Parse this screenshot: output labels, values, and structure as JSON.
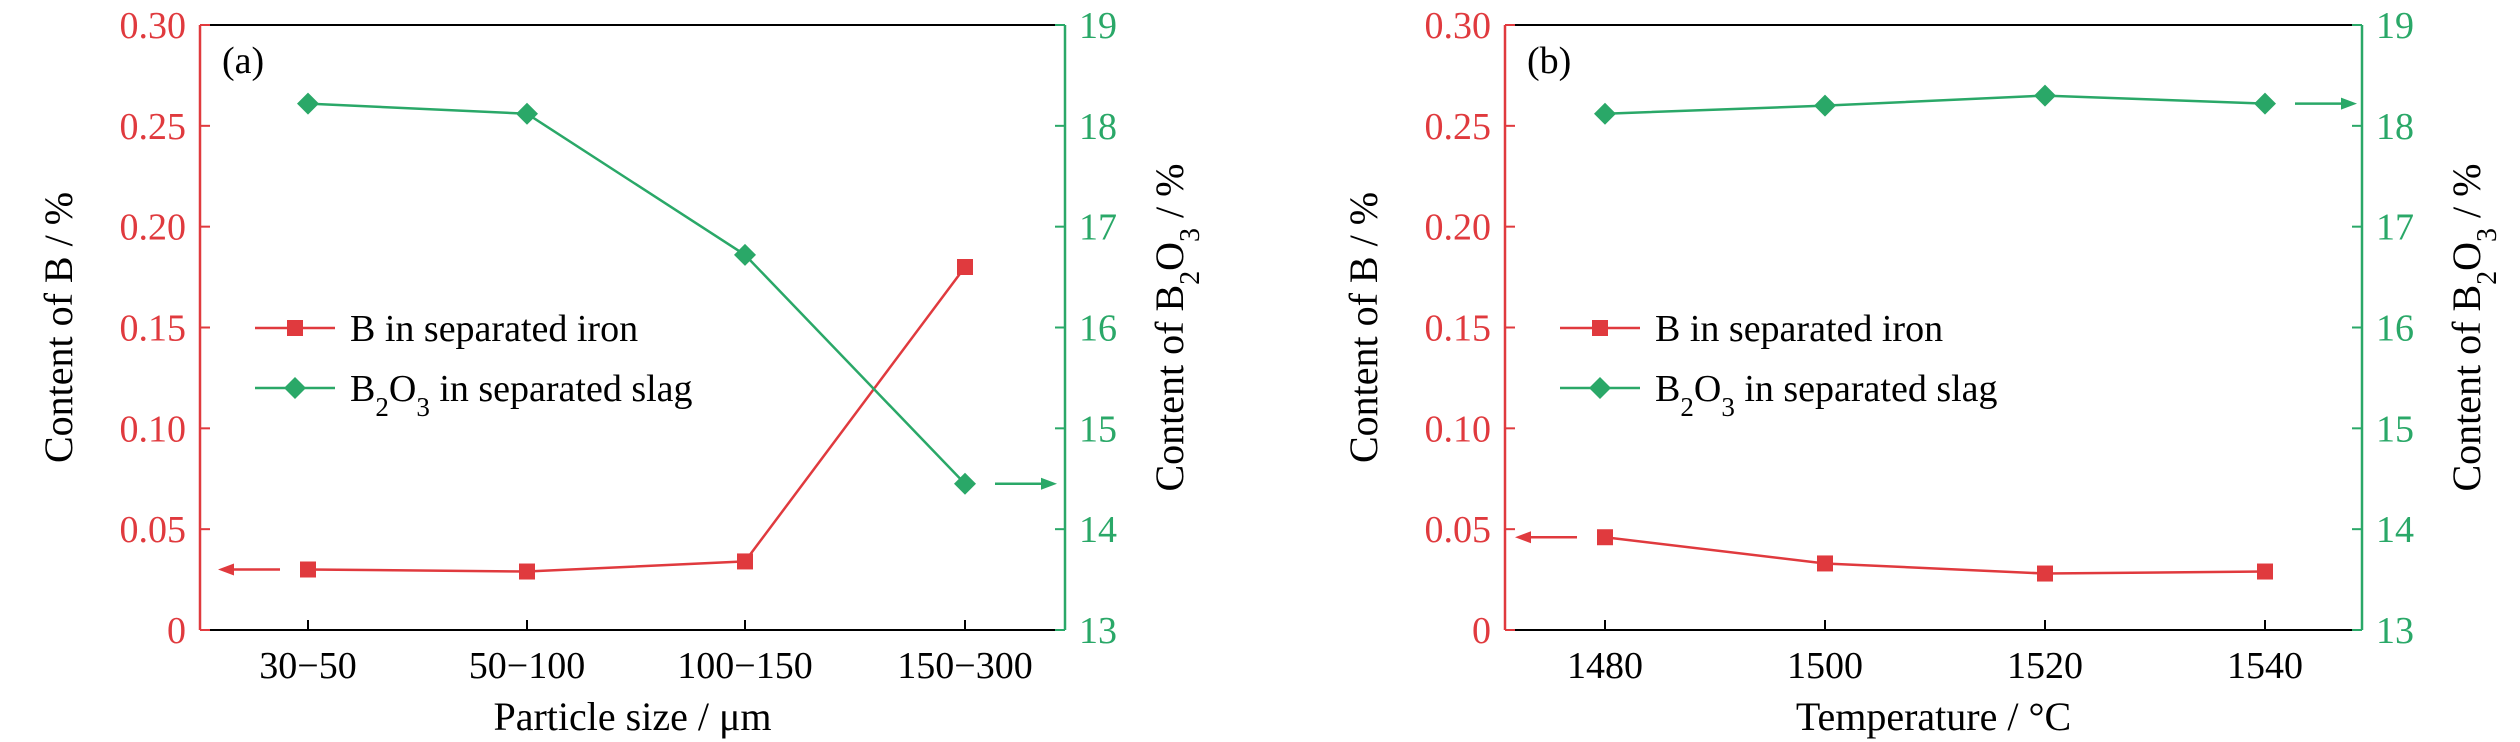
{
  "colors": {
    "left_axis": "#e03a3e",
    "right_axis": "#2aa868",
    "frame": "#000000",
    "series_b": "#e03a3e",
    "series_b2o3": "#2aa868"
  },
  "chart_data": [
    {
      "type": "line",
      "panel_label": "(a)",
      "xlabel": "Particle size / μm",
      "categories": [
        "30−50",
        "50−100",
        "100−150",
        "150−300"
      ],
      "ylabel_left": "Content of B / %",
      "ylabel_right": "Content of B₂O₃ / %",
      "ylim_left": [
        0,
        0.3
      ],
      "ylim_right": [
        13,
        19
      ],
      "yticks_left": [
        "0",
        "0.05",
        "0.10",
        "0.15",
        "0.20",
        "0.25",
        "0.30"
      ],
      "yticks_right": [
        "13",
        "14",
        "15",
        "16",
        "17",
        "18",
        "19"
      ],
      "grid": false,
      "legend_position": "center-left",
      "series": [
        {
          "name": "B in separated iron",
          "axis": "left",
          "marker": "square",
          "values": [
            0.03,
            0.029,
            0.034,
            0.18
          ]
        },
        {
          "name": "B₂O₃ in separated slag",
          "axis": "right",
          "marker": "diamond",
          "values": [
            18.22,
            18.12,
            16.72,
            14.45
          ]
        }
      ],
      "arrows": [
        "B series → left axis",
        "B₂O₃ series → right axis"
      ]
    },
    {
      "type": "line",
      "panel_label": "(b)",
      "xlabel": "Temperature / °C",
      "categories": [
        "1480",
        "1500",
        "1520",
        "1540"
      ],
      "ylabel_left": "Content of B / %",
      "ylabel_right": "Content of B₂O₃ / %",
      "ylim_left": [
        0,
        0.3
      ],
      "ylim_right": [
        13,
        19
      ],
      "yticks_left": [
        "0",
        "0.05",
        "0.10",
        "0.15",
        "0.20",
        "0.25",
        "0.30"
      ],
      "yticks_right": [
        "13",
        "14",
        "15",
        "16",
        "17",
        "18",
        "19"
      ],
      "grid": false,
      "legend_position": "center-left",
      "series": [
        {
          "name": "B in separated iron",
          "axis": "left",
          "marker": "square",
          "values": [
            0.046,
            0.033,
            0.028,
            0.029
          ]
        },
        {
          "name": "B₂O₃ in separated slag",
          "axis": "right",
          "marker": "diamond",
          "values": [
            18.12,
            18.2,
            18.3,
            18.22
          ]
        }
      ],
      "arrows": [
        "B series → left axis",
        "B₂O₃ series → right axis"
      ]
    }
  ]
}
